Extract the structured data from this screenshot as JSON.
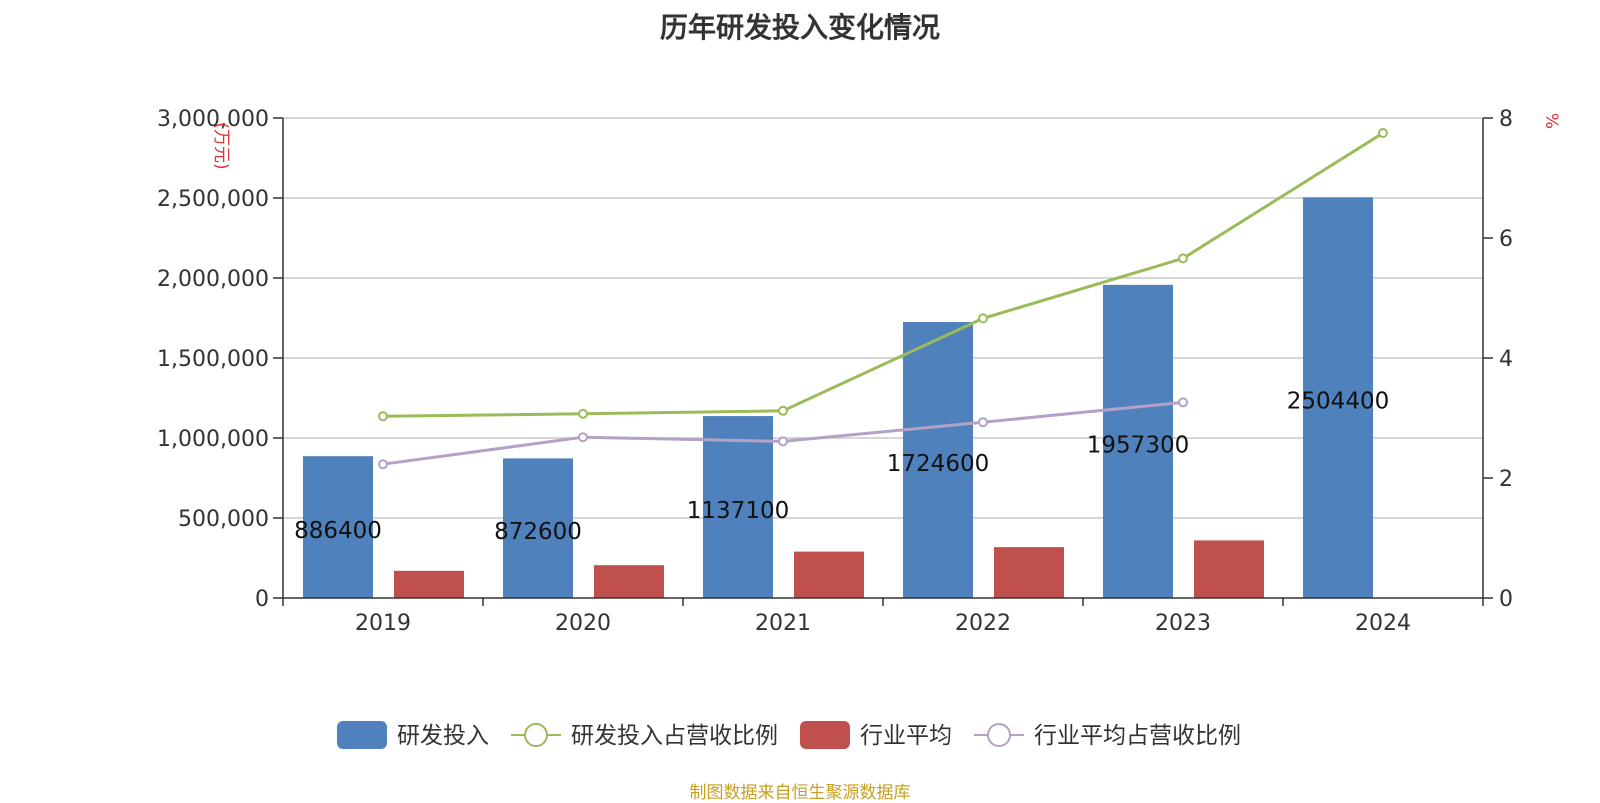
{
  "chart_data": {
    "type": "bar",
    "title": "历年研发投入变化情况",
    "categories": [
      "2019",
      "2020",
      "2021",
      "2022",
      "2023",
      "2024"
    ],
    "y_left": {
      "unit_label": "(万元)",
      "ylim": [
        0,
        3000000
      ],
      "ticks": [
        "0",
        "500,000",
        "1,000,000",
        "1,500,000",
        "2,000,000",
        "2,500,000",
        "3,000,000"
      ]
    },
    "y_right": {
      "unit_label": "%",
      "ylim": [
        0,
        8
      ],
      "ticks": [
        "0",
        "2",
        "4",
        "6",
        "8"
      ]
    },
    "series": [
      {
        "name": "研发投入",
        "type": "bar",
        "axis": "left",
        "color": "#4f81bd",
        "values": [
          886400,
          872600,
          1137100,
          1724600,
          1957300,
          2504400
        ],
        "data_labels": [
          "886400",
          "872600",
          "1137100",
          "1724600",
          "1957300",
          "2504400"
        ]
      },
      {
        "name": "研发投入占营收比例",
        "type": "line",
        "axis": "right",
        "color": "#9bbb59",
        "values": [
          3.03,
          3.07,
          3.12,
          4.66,
          5.66,
          7.75
        ]
      },
      {
        "name": "行业平均",
        "type": "bar",
        "axis": "left",
        "color": "#c0504d",
        "values": [
          170000,
          205000,
          290000,
          318000,
          360000,
          null
        ]
      },
      {
        "name": "行业平均占营收比例",
        "type": "line",
        "axis": "right",
        "color": "#b3a2c7",
        "values": [
          2.23,
          2.68,
          2.61,
          2.93,
          3.26,
          null
        ]
      }
    ],
    "grid": true,
    "legend_position": "bottom"
  },
  "footer": {
    "text": "制图数据来自恒生聚源数据库",
    "color": "#c8a020"
  }
}
